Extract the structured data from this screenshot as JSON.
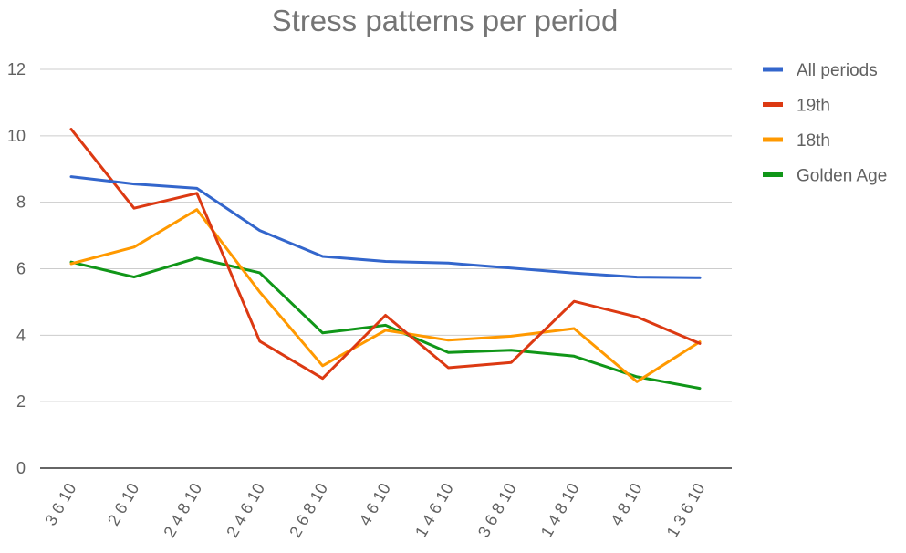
{
  "chart_data": {
    "type": "line",
    "title": "Stress patterns per period",
    "xlabel": "",
    "ylabel": "",
    "ylim": [
      0,
      12
    ],
    "yticks": [
      0,
      2,
      4,
      6,
      8,
      10,
      12
    ],
    "grid": true,
    "legend_position": "right",
    "categories": [
      "3 6 10",
      "2 6 10",
      "2 4 8 10",
      "2 4 6 10",
      "2 6 8 10",
      "4 6 10",
      "1 4 6 10",
      "3 6 8 10",
      "1 4 8 10",
      "4 8 10",
      "1 3 6 10"
    ],
    "series": [
      {
        "name": "All periods",
        "color": "#3366cc",
        "values": [
          8.77,
          8.55,
          8.42,
          7.15,
          6.37,
          6.22,
          6.17,
          6.02,
          5.87,
          5.75,
          5.73
        ]
      },
      {
        "name": "19th",
        "color": "#dc3912",
        "values": [
          10.2,
          7.82,
          8.27,
          3.82,
          2.7,
          4.6,
          3.02,
          3.18,
          5.02,
          4.55,
          3.75
        ]
      },
      {
        "name": "18th",
        "color": "#ff9900",
        "values": [
          6.15,
          6.65,
          7.78,
          5.3,
          3.08,
          4.15,
          3.85,
          3.97,
          4.2,
          2.6,
          3.8
        ]
      },
      {
        "name": "Golden Age",
        "color": "#109618",
        "values": [
          6.2,
          5.75,
          6.32,
          5.88,
          4.07,
          4.3,
          3.48,
          3.55,
          3.37,
          2.75,
          2.4
        ]
      }
    ]
  }
}
